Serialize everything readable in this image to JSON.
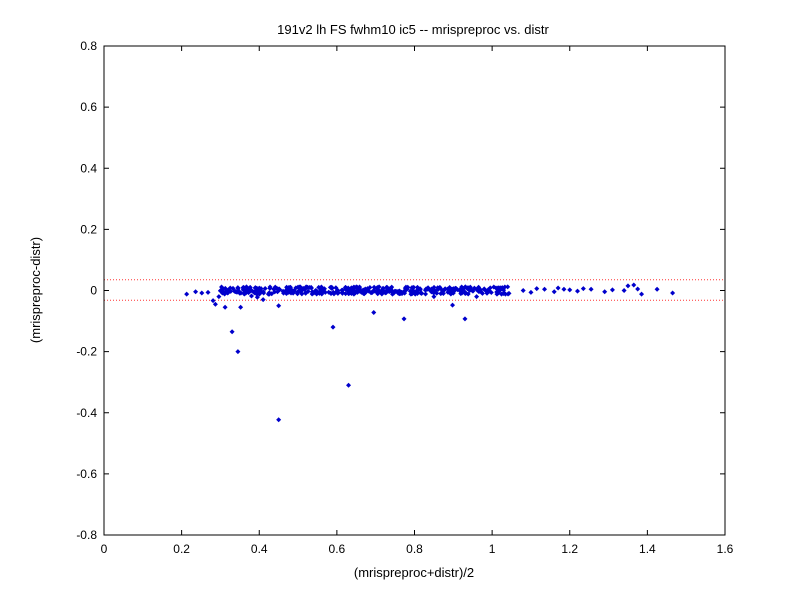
{
  "chart_data": {
    "type": "scatter",
    "title": "191v2 lh FS fwhm10 ic5 -- mrispreproc vs. distr",
    "xlabel": "(mrispreproc+distr)/2",
    "ylabel": "(mrispreproc-distr)",
    "xlim": [
      0,
      1.6
    ],
    "ylim": [
      -0.8,
      0.8
    ],
    "x_ticks": [
      "0",
      "0.2",
      "0.4",
      "0.6",
      "0.8",
      "1",
      "1.2",
      "1.4",
      "1.6"
    ],
    "y_ticks": [
      "0.8",
      "0.6",
      "0.4",
      "0.2",
      "0",
      "-0.2",
      "-0.4",
      "-0.6",
      "-0.8"
    ],
    "grid": false,
    "colors": {
      "points": "#0000cc",
      "limit_lines": "#ff3333",
      "axes": "#000000"
    },
    "limit_lines": [
      0.035,
      -0.032
    ],
    "series": [
      {
        "points": [
          [
            0.213,
            -0.012
          ],
          [
            0.236,
            -0.004
          ],
          [
            0.252,
            -0.008
          ],
          [
            0.268,
            -0.006
          ],
          [
            0.281,
            -0.033
          ],
          [
            0.287,
            -0.045
          ],
          [
            0.296,
            -0.02
          ],
          [
            0.305,
            -0.008
          ],
          [
            0.312,
            -0.055
          ],
          [
            0.33,
            -0.135
          ],
          [
            0.345,
            -0.2
          ],
          [
            0.352,
            -0.055
          ],
          [
            0.38,
            -0.018
          ],
          [
            0.395,
            -0.022
          ],
          [
            0.41,
            -0.03
          ],
          [
            0.45,
            -0.05
          ],
          [
            0.45,
            -0.423
          ],
          [
            0.47,
            -0.01
          ],
          [
            0.59,
            -0.12
          ],
          [
            0.63,
            -0.31
          ],
          [
            0.695,
            -0.072
          ],
          [
            0.773,
            -0.093
          ],
          [
            0.85,
            -0.02
          ],
          [
            0.898,
            -0.048
          ],
          [
            0.93,
            -0.093
          ],
          [
            0.96,
            -0.02
          ],
          [
            1.01,
            0.008
          ],
          [
            1.04,
            0.012
          ],
          [
            1.08,
            0.0
          ],
          [
            1.1,
            -0.006
          ],
          [
            1.115,
            0.006
          ],
          [
            1.135,
            0.004
          ],
          [
            1.16,
            -0.004
          ],
          [
            1.17,
            0.008
          ],
          [
            1.185,
            0.004
          ],
          [
            1.2,
            0.002
          ],
          [
            1.22,
            -0.002
          ],
          [
            1.235,
            0.006
          ],
          [
            1.255,
            0.004
          ],
          [
            1.29,
            -0.004
          ],
          [
            1.31,
            0.002
          ],
          [
            1.35,
            0.015
          ],
          [
            1.34,
            0.0
          ],
          [
            1.365,
            0.018
          ],
          [
            1.375,
            0.005
          ],
          [
            1.385,
            -0.012
          ],
          [
            1.425,
            0.004
          ],
          [
            1.465,
            -0.008
          ]
        ],
        "band": {
          "x_from": 0.3,
          "x_to": 1.05,
          "y_from": -0.012,
          "y_to": 0.012,
          "count": 420
        }
      }
    ]
  }
}
